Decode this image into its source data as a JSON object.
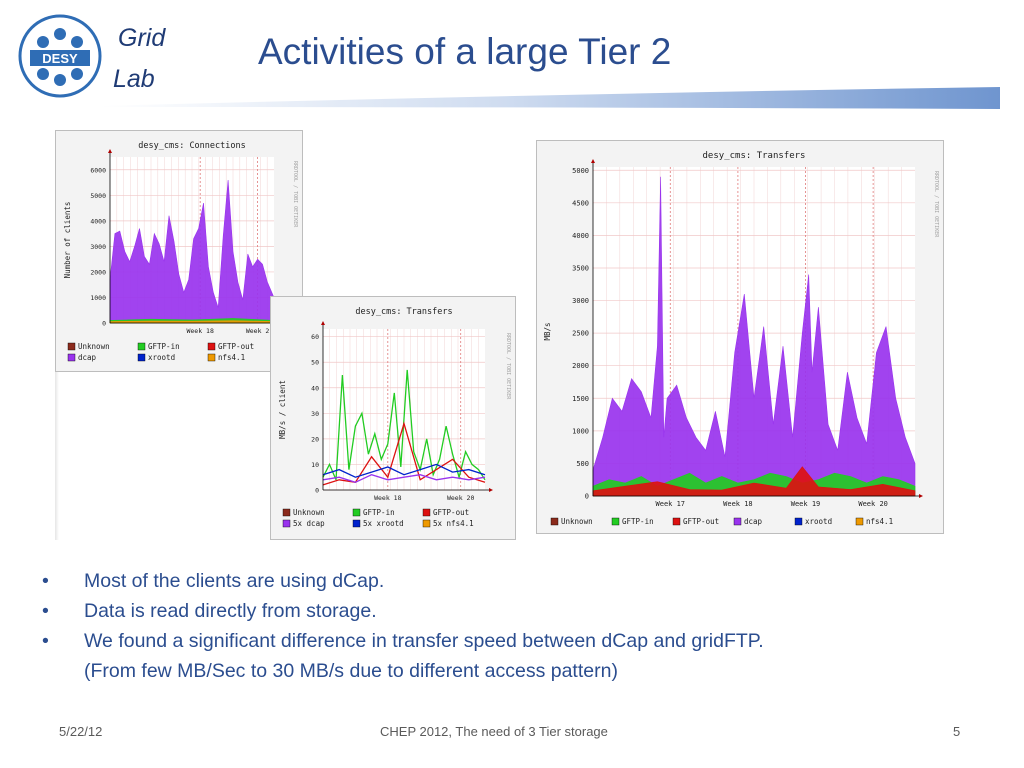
{
  "slide": {
    "logo_text": "DESY",
    "grid_label": "Grid",
    "lab_label": "Lab",
    "title": "Activities of a large Tier 2",
    "bullets": [
      "Most of the clients are using dCap.",
      "Data is read directly from storage.",
      "We found a significant difference in transfer speed between dCap and gridFTP."
    ],
    "bullet_continuation": "(From few MB/Sec to 30 MB/s due to different access pattern)",
    "footer_date": "5/22/12",
    "footer_center": "CHEP 2012, The need of 3 Tier storage",
    "footer_page": "5",
    "bullet_symbol": "•",
    "accent_color": "#2b4d8f"
  },
  "chart_data": [
    {
      "type": "area",
      "title": "desy_cms: Connections",
      "ylabel": "Number of clients",
      "xlabel": "",
      "side_label": "RRDTOOL / TOBI OETIKER",
      "yticks": [
        0,
        1000,
        2000,
        3000,
        4000,
        5000,
        6000
      ],
      "ylim": [
        0,
        6500
      ],
      "xticks": [
        {
          "label": "Week 18",
          "x": 0.55
        },
        {
          "label": "Week 2",
          "x": 0.9
        }
      ],
      "grid": true,
      "legend": "bottom",
      "legend_entries": [
        {
          "name": "Unknown",
          "color": "#8b2a1c"
        },
        {
          "name": "GFTP-in",
          "color": "#22cc22"
        },
        {
          "name": "GFTP-out",
          "color": "#dd1111"
        },
        {
          "name": "dcap",
          "color": "#9933ee"
        },
        {
          "name": "xrootd",
          "color": "#0022cc"
        },
        {
          "name": "nfs4.1",
          "color": "#ee9900"
        }
      ],
      "series": [
        {
          "name": "dcap",
          "color": "#9933ee",
          "x": [
            0,
            0.03,
            0.06,
            0.09,
            0.12,
            0.15,
            0.18,
            0.21,
            0.24,
            0.27,
            0.3,
            0.33,
            0.36,
            0.39,
            0.42,
            0.45,
            0.48,
            0.51,
            0.54,
            0.57,
            0.6,
            0.63,
            0.66,
            0.69,
            0.72,
            0.75,
            0.78,
            0.81,
            0.84,
            0.87,
            0.9,
            0.93,
            0.96,
            1.0
          ],
          "values": [
            1700,
            3500,
            3600,
            2800,
            2400,
            3000,
            3700,
            2600,
            2300,
            3500,
            3100,
            2400,
            4200,
            3200,
            1900,
            1200,
            1700,
            3300,
            3700,
            4700,
            2200,
            1200,
            600,
            3400,
            5600,
            2800,
            1600,
            900,
            2700,
            2200,
            2500,
            2300,
            1600,
            1000
          ]
        },
        {
          "name": "GFTP-in",
          "color": "#22cc22",
          "x": [
            0,
            0.25,
            0.5,
            0.75,
            1.0
          ],
          "values": [
            100,
            150,
            120,
            180,
            100
          ]
        },
        {
          "name": "nfs4.1",
          "color": "#ee9900",
          "x": [
            0,
            0.25,
            0.5,
            0.75,
            1.0
          ],
          "values": [
            60,
            80,
            70,
            90,
            60
          ]
        }
      ]
    },
    {
      "type": "line",
      "title": "desy_cms: Transfers",
      "ylabel": "MB/s / client",
      "xlabel": "",
      "side_label": "RRDTOOL / TOBI OETIKER",
      "yticks": [
        0,
        10,
        20,
        30,
        40,
        50,
        60
      ],
      "ylim": [
        0,
        63
      ],
      "xticks": [
        {
          "label": "Week 18",
          "x": 0.4
        },
        {
          "label": "Week 20",
          "x": 0.85
        }
      ],
      "grid": true,
      "legend": "bottom",
      "legend_entries": [
        {
          "name": "Unknown",
          "color": "#8b2a1c"
        },
        {
          "name": "GFTP-in",
          "color": "#22cc22"
        },
        {
          "name": "GFTP-out",
          "color": "#dd1111"
        },
        {
          "name": "5x dcap",
          "color": "#9933ee"
        },
        {
          "name": "5x xrootd",
          "color": "#0022cc"
        },
        {
          "name": "5x nfs4.1",
          "color": "#ee9900"
        }
      ],
      "series": [
        {
          "name": "GFTP-in",
          "color": "#22cc22",
          "x": [
            0,
            0.04,
            0.08,
            0.12,
            0.16,
            0.2,
            0.24,
            0.28,
            0.32,
            0.36,
            0.4,
            0.44,
            0.48,
            0.52,
            0.56,
            0.6,
            0.64,
            0.68,
            0.72,
            0.76,
            0.8,
            0.84,
            0.88,
            0.92,
            0.96,
            1.0
          ],
          "values": [
            5,
            10,
            4,
            45,
            8,
            25,
            30,
            14,
            22,
            12,
            18,
            38,
            9,
            47,
            15,
            8,
            20,
            6,
            12,
            25,
            14,
            5,
            15,
            10,
            8,
            4
          ]
        },
        {
          "name": "GFTP-out",
          "color": "#dd1111",
          "x": [
            0,
            0.1,
            0.2,
            0.3,
            0.4,
            0.5,
            0.6,
            0.7,
            0.8,
            0.9,
            1.0
          ],
          "values": [
            2,
            4,
            3,
            13,
            5,
            26,
            4,
            8,
            12,
            5,
            3
          ]
        },
        {
          "name": "5x dcap",
          "color": "#9933ee",
          "x": [
            0,
            0.1,
            0.2,
            0.3,
            0.4,
            0.5,
            0.6,
            0.7,
            0.8,
            0.9,
            1.0
          ],
          "values": [
            4,
            5,
            3,
            6,
            4,
            5,
            6,
            4,
            5,
            4,
            5
          ]
        },
        {
          "name": "5x xrootd",
          "color": "#0022cc",
          "x": [
            0,
            0.1,
            0.2,
            0.3,
            0.4,
            0.5,
            0.6,
            0.7,
            0.8,
            0.9,
            1.0
          ],
          "values": [
            6,
            8,
            5,
            7,
            9,
            6,
            8,
            10,
            7,
            8,
            6
          ]
        }
      ]
    },
    {
      "type": "area",
      "title": "desy_cms: Transfers",
      "ylabel": "MB/s",
      "xlabel": "",
      "side_label": "RRDTOOL / TOBI OETIKER",
      "yticks": [
        0,
        500,
        1000,
        1500,
        2000,
        2500,
        3000,
        3500,
        4000,
        4500,
        5000
      ],
      "ylim": [
        0,
        5050
      ],
      "xticks": [
        {
          "label": "Week 17",
          "x": 0.24
        },
        {
          "label": "Week 18",
          "x": 0.45
        },
        {
          "label": "Week 19",
          "x": 0.66
        },
        {
          "label": "Week 20",
          "x": 0.87
        }
      ],
      "grid": true,
      "legend": "bottom",
      "legend_entries": [
        {
          "name": "Unknown",
          "color": "#8b2a1c"
        },
        {
          "name": "GFTP-in",
          "color": "#22cc22"
        },
        {
          "name": "GFTP-out",
          "color": "#dd1111"
        },
        {
          "name": "dcap",
          "color": "#9933ee"
        },
        {
          "name": "xrootd",
          "color": "#0022cc"
        },
        {
          "name": "nfs4.1",
          "color": "#ee9900"
        }
      ],
      "series": [
        {
          "name": "dcap",
          "color": "#9933ee",
          "x": [
            0,
            0.03,
            0.06,
            0.09,
            0.12,
            0.15,
            0.18,
            0.2,
            0.21,
            0.22,
            0.23,
            0.26,
            0.29,
            0.32,
            0.35,
            0.38,
            0.41,
            0.44,
            0.47,
            0.5,
            0.53,
            0.56,
            0.59,
            0.62,
            0.65,
            0.67,
            0.68,
            0.7,
            0.73,
            0.76,
            0.79,
            0.82,
            0.85,
            0.88,
            0.91,
            0.94,
            0.97,
            1.0
          ],
          "values": [
            400,
            900,
            1500,
            1300,
            1800,
            1600,
            1200,
            2300,
            4900,
            900,
            1500,
            1700,
            1200,
            900,
            700,
            1300,
            600,
            2200,
            3100,
            1500,
            2600,
            1100,
            2300,
            900,
            2500,
            3400,
            1900,
            2900,
            1100,
            700,
            1900,
            1200,
            800,
            2200,
            2600,
            1500,
            900,
            500
          ]
        },
        {
          "name": "GFTP-in",
          "color": "#22cc22",
          "x": [
            0,
            0.05,
            0.1,
            0.15,
            0.2,
            0.25,
            0.3,
            0.35,
            0.4,
            0.45,
            0.5,
            0.55,
            0.6,
            0.65,
            0.7,
            0.75,
            0.8,
            0.85,
            0.9,
            0.95,
            1.0
          ],
          "values": [
            150,
            250,
            200,
            300,
            150,
            250,
            350,
            200,
            300,
            200,
            250,
            350,
            300,
            200,
            250,
            350,
            300,
            200,
            300,
            250,
            150
          ]
        },
        {
          "name": "GFTP-out",
          "color": "#dd1111",
          "x": [
            0,
            0.1,
            0.2,
            0.3,
            0.4,
            0.5,
            0.6,
            0.65,
            0.7,
            0.8,
            0.9,
            1.0
          ],
          "values": [
            80,
            150,
            220,
            100,
            90,
            200,
            120,
            450,
            140,
            100,
            180,
            80
          ]
        }
      ]
    }
  ]
}
